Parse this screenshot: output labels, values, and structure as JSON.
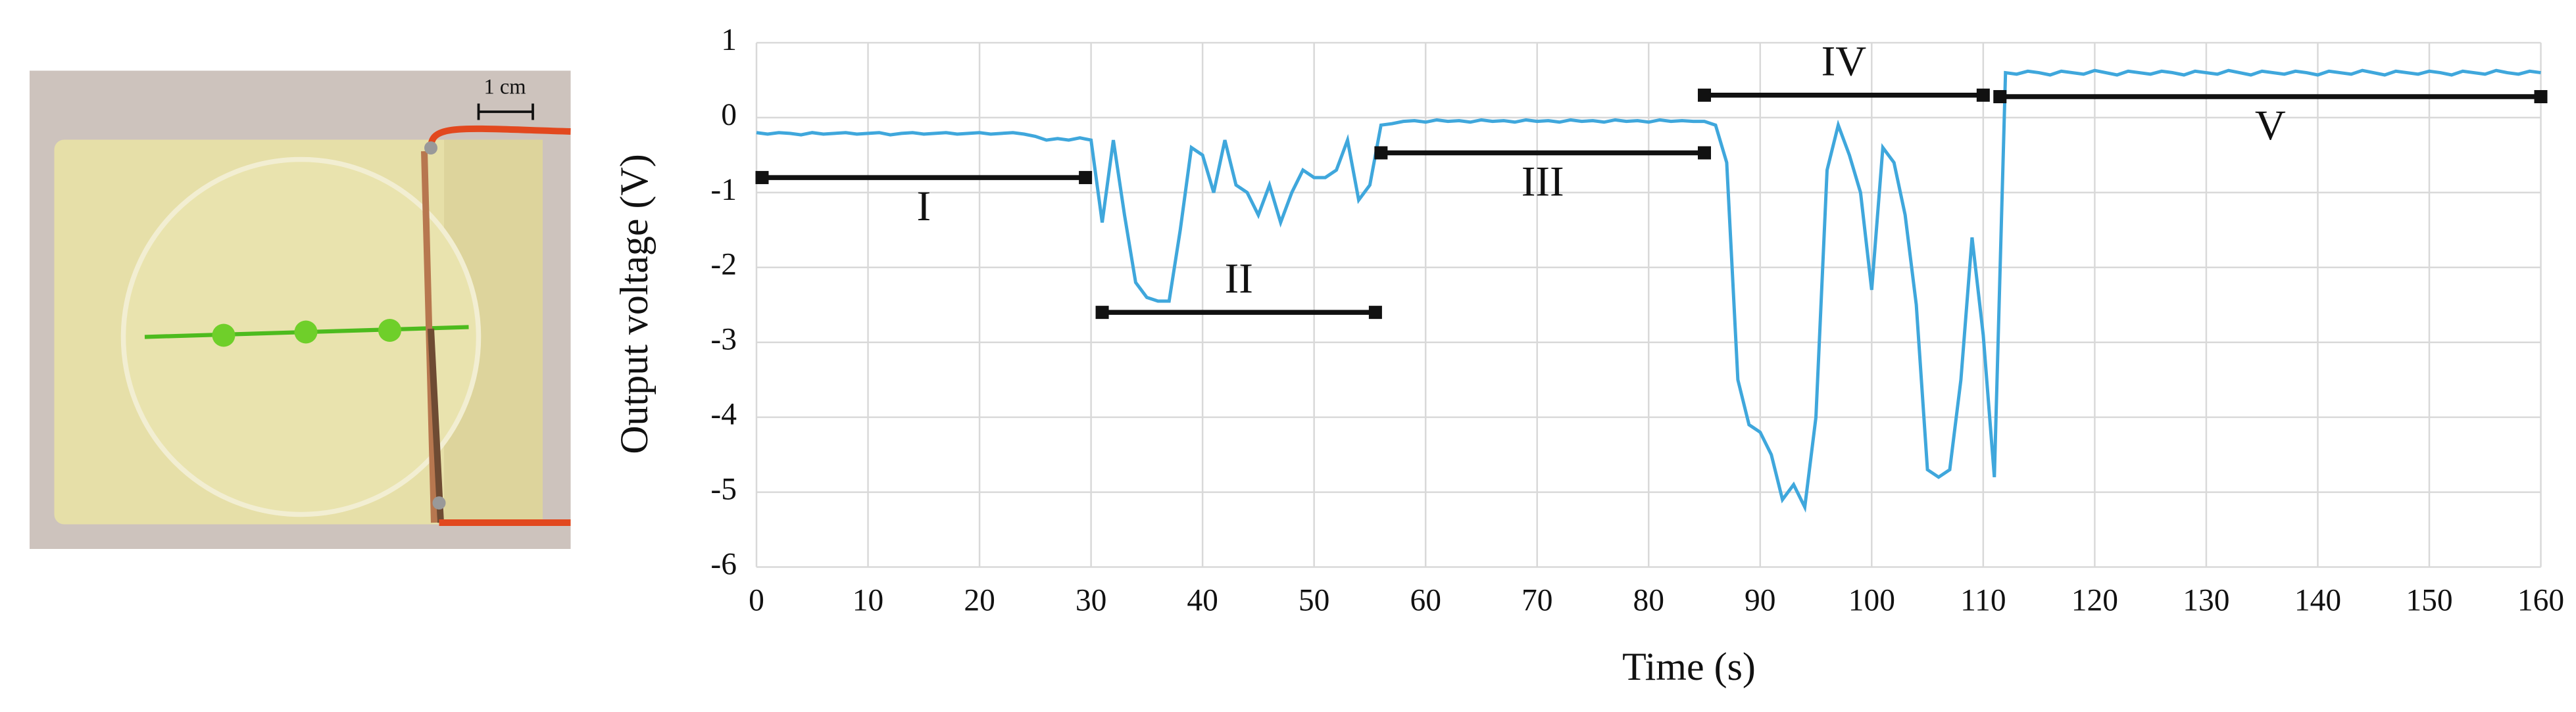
{
  "photo": {
    "scale_label": "1 cm"
  },
  "chart_data": {
    "type": "line",
    "x_label": "Time (s)",
    "y_label": "Output voltage (V)",
    "xlim": [
      0,
      160
    ],
    "xticks": [
      0,
      10,
      20,
      30,
      40,
      50,
      60,
      70,
      80,
      90,
      100,
      110,
      120,
      130,
      140,
      150,
      160
    ],
    "ylim": [
      -6,
      1
    ],
    "yticks": [
      -6,
      -5,
      -4,
      -3,
      -2,
      -1,
      0,
      1
    ],
    "grid": true,
    "series": [
      {
        "name": "Output voltage",
        "color": "#3fa7dc",
        "x": [
          0,
          1,
          2,
          3,
          4,
          5,
          6,
          7,
          8,
          9,
          10,
          11,
          12,
          13,
          14,
          15,
          16,
          17,
          18,
          19,
          20,
          21,
          22,
          23,
          24,
          25,
          26,
          27,
          28,
          29,
          30,
          31,
          32,
          33,
          34,
          35,
          36,
          37,
          38,
          39,
          40,
          41,
          42,
          43,
          44,
          45,
          46,
          47,
          48,
          49,
          50,
          51,
          52,
          53,
          54,
          55,
          56,
          57,
          58,
          59,
          60,
          61,
          62,
          63,
          64,
          65,
          66,
          67,
          68,
          69,
          70,
          71,
          72,
          73,
          74,
          75,
          76,
          77,
          78,
          79,
          80,
          81,
          82,
          83,
          84,
          85,
          86,
          87,
          88,
          89,
          90,
          91,
          92,
          93,
          94,
          95,
          96,
          97,
          98,
          99,
          100,
          101,
          102,
          103,
          104,
          105,
          106,
          107,
          108,
          109,
          110,
          111,
          112,
          113,
          114,
          115,
          116,
          117,
          118,
          119,
          120,
          121,
          122,
          123,
          124,
          125,
          126,
          127,
          128,
          129,
          130,
          131,
          132,
          133,
          134,
          135,
          136,
          137,
          138,
          139,
          140,
          141,
          142,
          143,
          144,
          145,
          146,
          147,
          148,
          149,
          150,
          151,
          152,
          153,
          154,
          155,
          156,
          157,
          158,
          159,
          160
        ],
        "values": [
          -0.2,
          -0.22,
          -0.2,
          -0.21,
          -0.23,
          -0.2,
          -0.22,
          -0.21,
          -0.2,
          -0.22,
          -0.21,
          -0.2,
          -0.23,
          -0.21,
          -0.2,
          -0.22,
          -0.21,
          -0.2,
          -0.22,
          -0.21,
          -0.2,
          -0.22,
          -0.21,
          -0.2,
          -0.22,
          -0.25,
          -0.3,
          -0.28,
          -0.3,
          -0.27,
          -0.3,
          -1.4,
          -0.3,
          -1.3,
          -2.2,
          -2.4,
          -2.45,
          -2.45,
          -1.5,
          -0.4,
          -0.5,
          -1.0,
          -0.3,
          -0.9,
          -1.0,
          -1.3,
          -0.9,
          -1.4,
          -1.0,
          -0.7,
          -0.8,
          -0.8,
          -0.7,
          -0.3,
          -1.1,
          -0.9,
          -0.1,
          -0.08,
          -0.05,
          -0.04,
          -0.06,
          -0.03,
          -0.05,
          -0.04,
          -0.06,
          -0.03,
          -0.05,
          -0.04,
          -0.06,
          -0.03,
          -0.05,
          -0.04,
          -0.06,
          -0.03,
          -0.05,
          -0.04,
          -0.06,
          -0.03,
          -0.05,
          -0.04,
          -0.06,
          -0.03,
          -0.05,
          -0.04,
          -0.05,
          -0.05,
          -0.1,
          -0.6,
          -3.5,
          -4.1,
          -4.2,
          -4.5,
          -5.1,
          -4.9,
          -5.2,
          -4.0,
          -0.7,
          -0.1,
          -0.5,
          -1.0,
          -2.3,
          -0.4,
          -0.6,
          -1.3,
          -2.5,
          -4.7,
          -4.8,
          -4.7,
          -3.5,
          -1.6,
          -2.9,
          -4.8,
          0.6,
          0.58,
          0.62,
          0.6,
          0.57,
          0.62,
          0.6,
          0.58,
          0.63,
          0.6,
          0.57,
          0.62,
          0.6,
          0.58,
          0.62,
          0.6,
          0.57,
          0.62,
          0.6,
          0.58,
          0.63,
          0.6,
          0.57,
          0.62,
          0.6,
          0.58,
          0.62,
          0.6,
          0.57,
          0.62,
          0.6,
          0.58,
          0.63,
          0.6,
          0.57,
          0.62,
          0.6,
          0.58,
          0.62,
          0.6,
          0.57,
          0.62,
          0.6,
          0.58,
          0.63,
          0.6,
          0.58,
          0.62,
          0.6
        ]
      }
    ],
    "annotations": [
      {
        "label": "I",
        "start": 0.5,
        "end": 29.5,
        "y": -0.8,
        "label_position": "below"
      },
      {
        "label": "II",
        "start": 31,
        "end": 55.5,
        "y": -2.6,
        "label_position": "above"
      },
      {
        "label": "III",
        "start": 56,
        "end": 85,
        "y": -0.47,
        "label_position": "below"
      },
      {
        "label": "IV",
        "start": 85,
        "end": 110,
        "y": 0.3,
        "label_position": "above"
      },
      {
        "label": "V",
        "start": 111.5,
        "end": 160,
        "y": 0.28,
        "label_position": "below"
      }
    ]
  }
}
